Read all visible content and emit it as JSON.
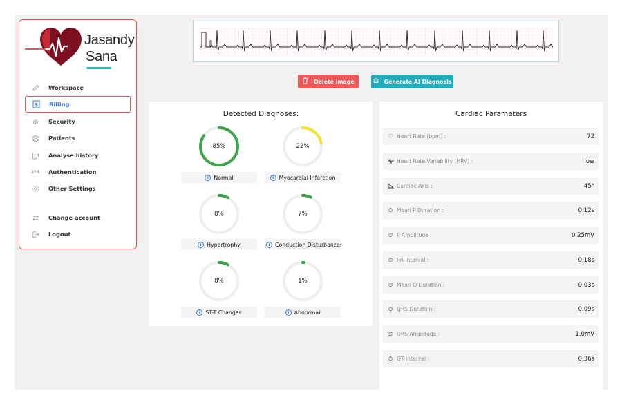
{
  "brand": {
    "line1": "Jasandy",
    "line2": "Sana"
  },
  "sidebar": {
    "items": [
      {
        "label": "Workspace",
        "icon": "pencil-icon"
      },
      {
        "label": "Billing",
        "icon": "billing-icon",
        "active": true
      },
      {
        "label": "Security",
        "icon": "fingerprint-icon"
      },
      {
        "label": "Patients",
        "icon": "layers-icon"
      },
      {
        "label": "Analyse history",
        "icon": "database-icon"
      },
      {
        "label": "Authentication",
        "icon": "two-factor-icon",
        "icon_text": "2FA"
      },
      {
        "label": "Other Settings",
        "icon": "gear-icon"
      }
    ],
    "footer_items": [
      {
        "label": "Change account",
        "icon": "swap-icon"
      },
      {
        "label": "Logout",
        "icon": "logout-icon"
      }
    ]
  },
  "actions": {
    "delete_label": "Delete image",
    "generate_label": "Generate AI Diagnosis"
  },
  "diagnoses": {
    "title": "Detected Diagnoses:",
    "items": [
      {
        "label": "Normal",
        "percent": 85,
        "value_text": "85%",
        "color": "#3fa34d"
      },
      {
        "label": "Myocardial Infarction",
        "percent": 22,
        "value_text": "22%",
        "color": "#f2e13a"
      },
      {
        "label": "Hypertrophy",
        "percent": 8,
        "value_text": "8%",
        "color": "#3fa34d"
      },
      {
        "label": "Conduction Disturbances",
        "percent": 7,
        "value_text": "7%",
        "color": "#3fa34d"
      },
      {
        "label": "ST-T Changes",
        "percent": 8,
        "value_text": "8%",
        "color": "#3fa34d"
      },
      {
        "label": "Abnormal",
        "percent": 1,
        "value_text": "1%",
        "color": "#3fa34d"
      }
    ]
  },
  "cardiac": {
    "title": "Cardiac Parameters",
    "params": [
      {
        "icon": "heart-icon",
        "label": "Heart Rate (bpm) :",
        "value": "72"
      },
      {
        "icon": "pulse-icon",
        "label": "Heart Rate Variability (HRV) :",
        "value": "low"
      },
      {
        "icon": "triangle-icon",
        "label": "Cardiac Axis :",
        "value": "45°"
      },
      {
        "icon": "timer-icon",
        "label": "Mean P Duration :",
        "value": "0.12s"
      },
      {
        "icon": "timer-icon",
        "label": "P Amplitude :",
        "value": "0.25mV"
      },
      {
        "icon": "timer-icon",
        "label": "PR Interval :",
        "value": "0.18s"
      },
      {
        "icon": "timer-icon",
        "label": "Mean Q Duration :",
        "value": "0.03s"
      },
      {
        "icon": "timer-icon",
        "label": "QRS Duration :",
        "value": "0.09s"
      },
      {
        "icon": "timer-icon",
        "label": "QRS Amplitude :",
        "value": "1.0mV"
      },
      {
        "icon": "timer-icon",
        "label": "QT Interval :",
        "value": "0.36s"
      }
    ]
  }
}
